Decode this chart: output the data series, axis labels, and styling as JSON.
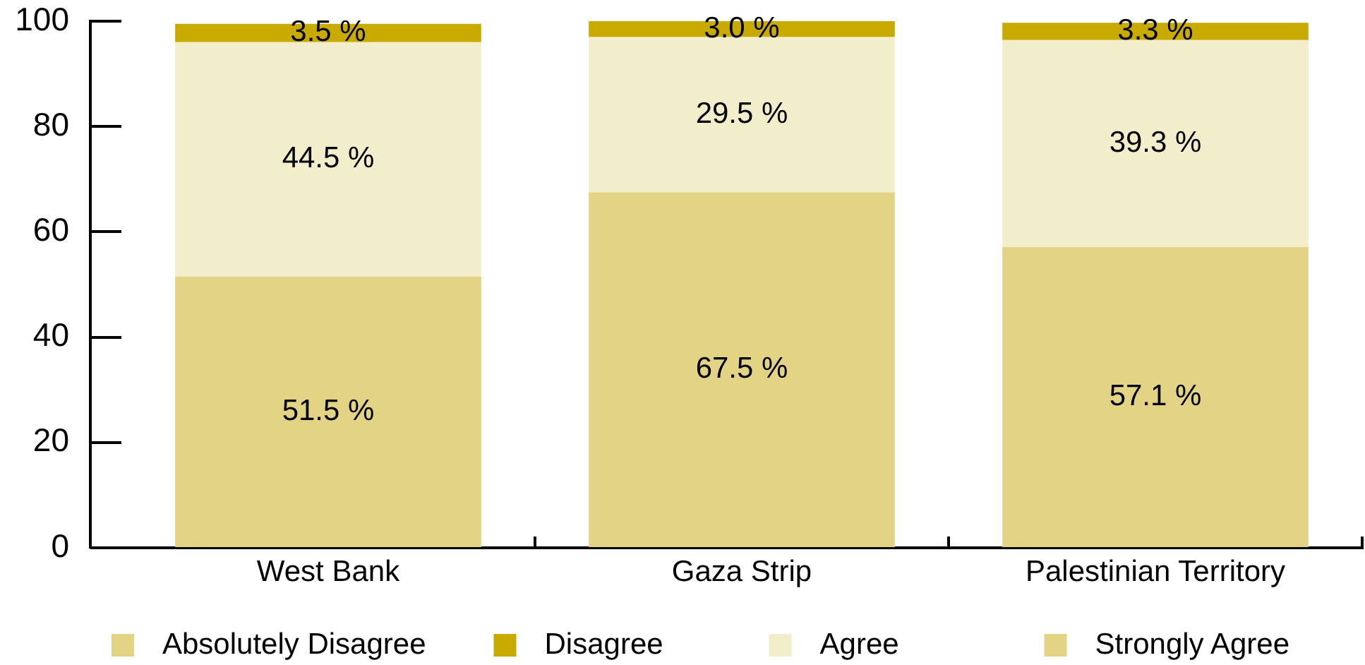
{
  "chart_data": {
    "type": "bar",
    "stacked": true,
    "legend": "bottom",
    "categories": [
      "West Bank",
      "Gaza Strip",
      "Palestinian Territory"
    ],
    "ylim": [
      0,
      100
    ],
    "yticks": [
      0,
      20,
      40,
      60,
      80,
      100
    ],
    "series": [
      {
        "name": "Strongly Agree",
        "color": "#e2d484",
        "values": [
          51.5,
          67.5,
          57.1
        ],
        "value_labels": [
          "51.5 %",
          "67.5 %",
          "57.1 %"
        ]
      },
      {
        "name": "Agree",
        "color": "#f2eecb",
        "values": [
          44.5,
          29.5,
          39.3
        ],
        "value_labels": [
          "44.5 %",
          "29.5 %",
          "39.3 %"
        ]
      },
      {
        "name": "Disagree",
        "color": "#c8aa00",
        "values": [
          3.5,
          3.0,
          3.3
        ],
        "value_labels": [
          "3.5 %",
          "3.0 %",
          "3.3 %"
        ]
      },
      {
        "name": "Absolutely Disagree",
        "color": "#e2d484",
        "values": [
          null,
          null,
          null
        ]
      }
    ]
  }
}
